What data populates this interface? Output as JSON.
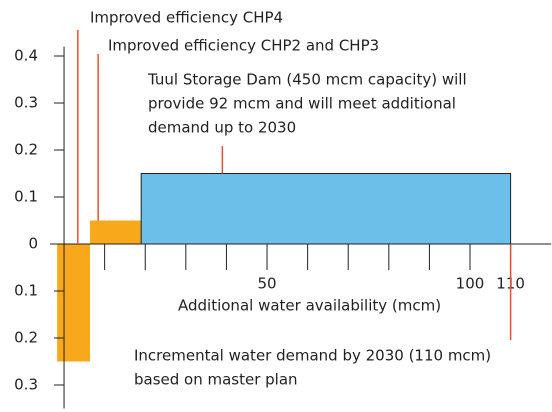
{
  "chart_data": {
    "type": "cost-curve",
    "x_label": "Additional water availability (mcm)",
    "bars": [
      {
        "x0": -1.7,
        "x1": 6.4,
        "value": -0.25,
        "color": "#f7a81b"
      },
      {
        "x0": 6.4,
        "x1": 19,
        "value": 0.05,
        "color": "#f7a81b"
      },
      {
        "x0": 19,
        "x1": 110,
        "value": 0.15,
        "color": "#6bbfe8"
      }
    ],
    "xlim": [
      -4,
      120
    ],
    "ylim": [
      -0.35,
      0.42
    ],
    "xticks": [
      50,
      100,
      110
    ],
    "xminor_ticks": [
      10,
      20,
      30,
      40,
      60,
      70,
      80,
      90
    ],
    "yticks": [
      0.4,
      0.3,
      0.2,
      0.1,
      0,
      {
        "value": -0.1,
        "label": "0.1"
      },
      {
        "value": -0.2,
        "label": "0.2"
      },
      {
        "value": -0.3,
        "label": "0.3"
      }
    ],
    "annotations": [
      {
        "x": 3.4,
        "lines": [
          "Improved efficiency CHP4"
        ]
      },
      {
        "x": 8.4,
        "lines": [
          "Improved efficiency CHP2 and CHP3"
        ]
      },
      {
        "x": 39,
        "lines": [
          "Tuul Storage Dam (450 mcm capacity) will",
          "provide 92 mcm and will meet additional",
          "demand up to 2030"
        ]
      },
      {
        "x": 110,
        "lines": [
          "Incremental water demand by 2030 (110 mcm)",
          "based on master plan"
        ]
      }
    ]
  }
}
